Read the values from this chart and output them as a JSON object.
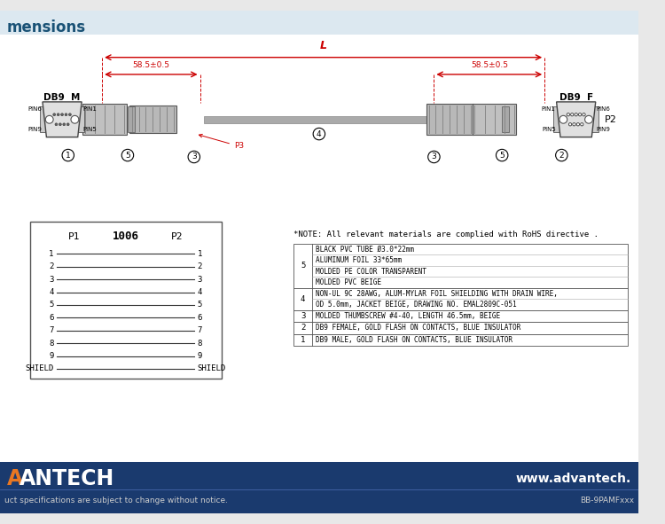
{
  "title_text": "mensions",
  "title_color": "#1a5276",
  "bg_color": "#e8e8e8",
  "white_bg": "#ffffff",
  "top_strip_color": "#dce8f0",
  "header_bar_color": "#1a3a6e",
  "dim_color": "#cc0000",
  "note_text": "*NOTE: All relevant materials are complied with RoHS directive .",
  "bom_rows": [
    {
      "num": "5",
      "desc": [
        "BLACK PVC TUBE Ø3.0*22mm",
        "ALUMINUM FOIL 33*65mm",
        "MOLDED PE COLOR TRANSPARENT",
        "MOLDED PVC BEIGE"
      ]
    },
    {
      "num": "4",
      "desc": [
        "NON-UL 9C 28AWG, ALUM-MYLAR FOIL SHIELDING WITH DRAIN WIRE,",
        "OD 5.0mm, JACKET BEIGE, DRAWING NO. EMAL2809C-051"
      ]
    },
    {
      "num": "3",
      "desc": [
        "MOLDED THUMBSCREW #4-40, LENGTH 46.5mm, BEIGE"
      ]
    },
    {
      "num": "2",
      "desc": [
        "DB9 FEMALE, GOLD FLASH ON CONTACTS, BLUE INSULATOR"
      ]
    },
    {
      "num": "1",
      "desc": [
        "DB9 MALE, GOLD FLASH ON CONTACTS, BLUE INSULATOR"
      ]
    }
  ],
  "footer_left": "uct specifications are subject to change without notice.",
  "footer_right": "BB-9PAMFxxx",
  "footer_url": "www.advantech.",
  "footer_brand": "ANTECH",
  "dim_label": "58.5±0.5",
  "cable_label": "L",
  "p1_label": "P1",
  "p2_label": "P2",
  "part_num": "1006",
  "pin_rows": [
    "1",
    "2",
    "3",
    "4",
    "5",
    "6",
    "7",
    "8",
    "9",
    "SHIELD"
  ],
  "db9m_label": "DB9  M",
  "db9f_label": "DB9  F",
  "p2_right": "P2"
}
